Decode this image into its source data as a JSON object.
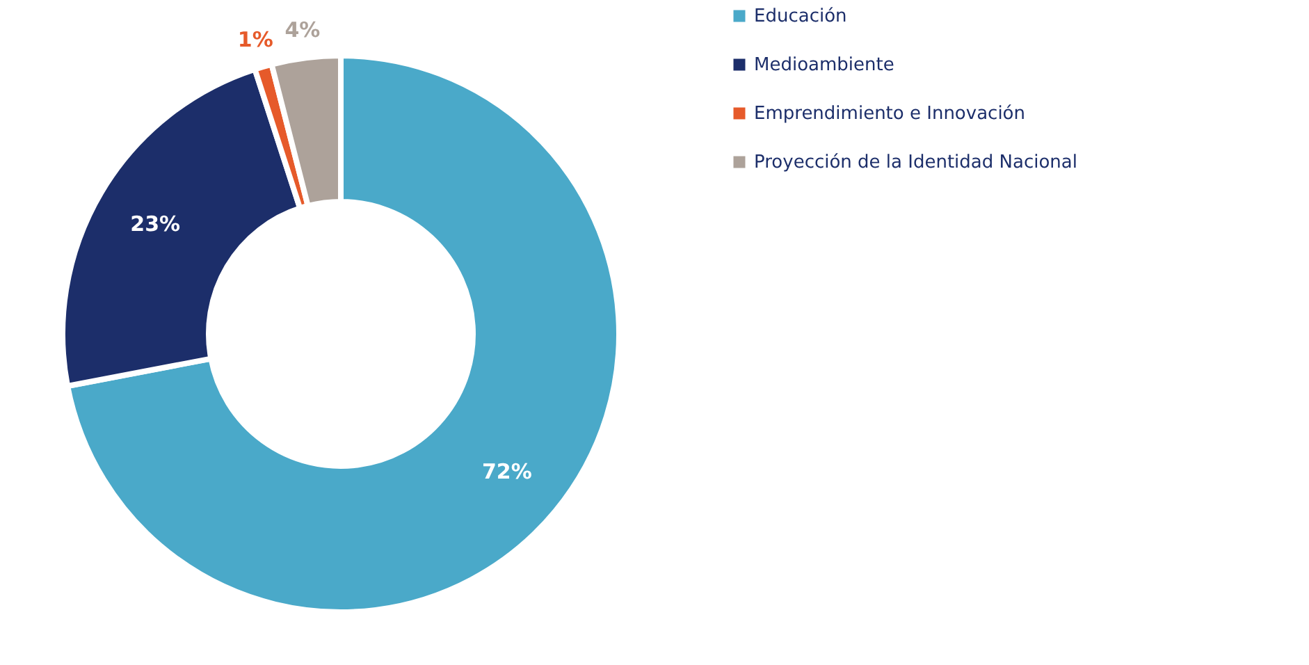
{
  "chart_data": {
    "type": "donut",
    "categories": [
      "Educación",
      "Medioambiente",
      "Emprendimiento e Innovación",
      "Proyección de la Identidad Nacional"
    ],
    "values": [
      72,
      23,
      1,
      4
    ],
    "colors": [
      "#4aa9c9",
      "#1c2e6a",
      "#e65a2a",
      "#ada29a"
    ],
    "value_labels": [
      "72%",
      "23%",
      "1%",
      "4%"
    ],
    "legend": "right"
  }
}
